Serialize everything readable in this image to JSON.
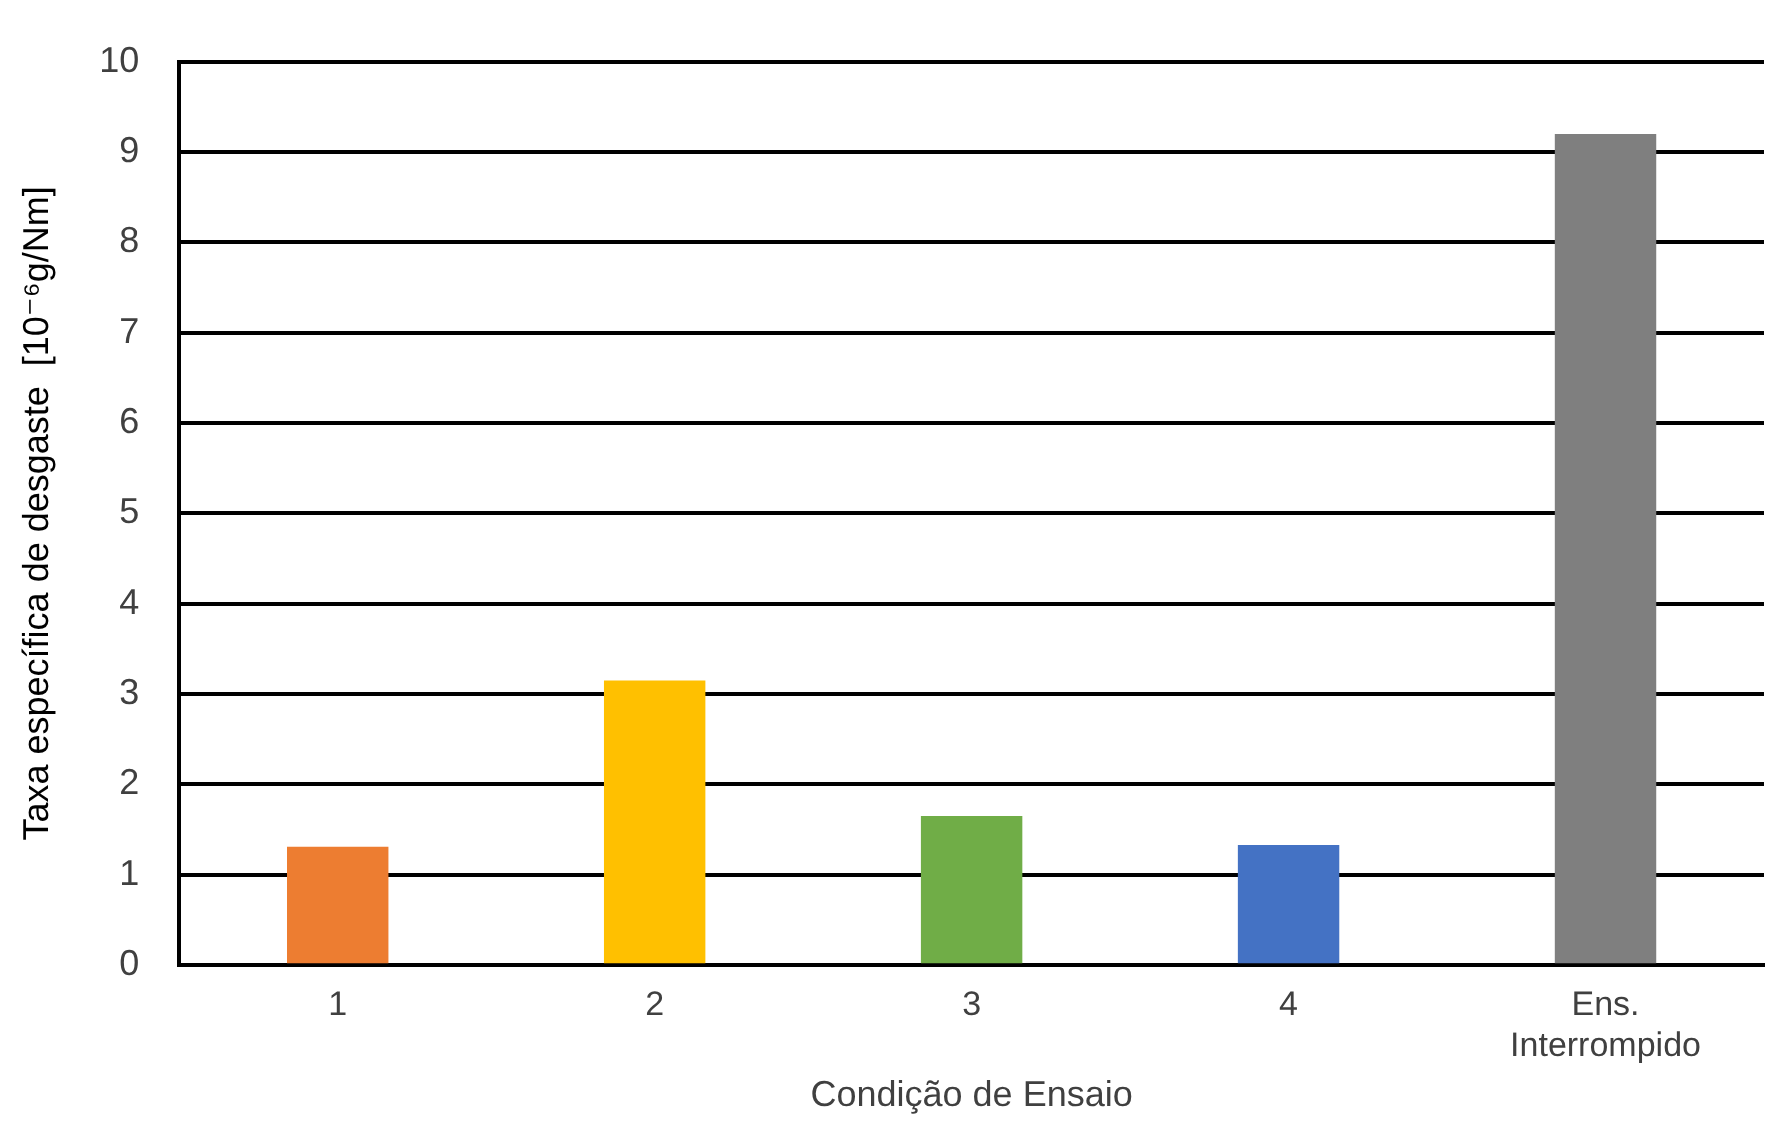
{
  "chart_data": {
    "type": "bar",
    "xlabel": "Condição de Ensaio",
    "ylabel": "Taxa específica de desgaste  [10⁻⁶g/Nm]",
    "categories": [
      "1",
      "2",
      "3",
      "4",
      "Ens. Interrompido"
    ],
    "values": [
      1.31,
      3.15,
      1.65,
      1.33,
      9.2
    ],
    "colors": [
      "#ed7d31",
      "#ffc000",
      "#70ad47",
      "#4472c4",
      "#7f7f7f"
    ],
    "ylim": [
      0,
      10
    ],
    "yticks": [
      0,
      1,
      2,
      3,
      4,
      5,
      6,
      7,
      8,
      9,
      10
    ],
    "grid": "y",
    "legend": false
  }
}
